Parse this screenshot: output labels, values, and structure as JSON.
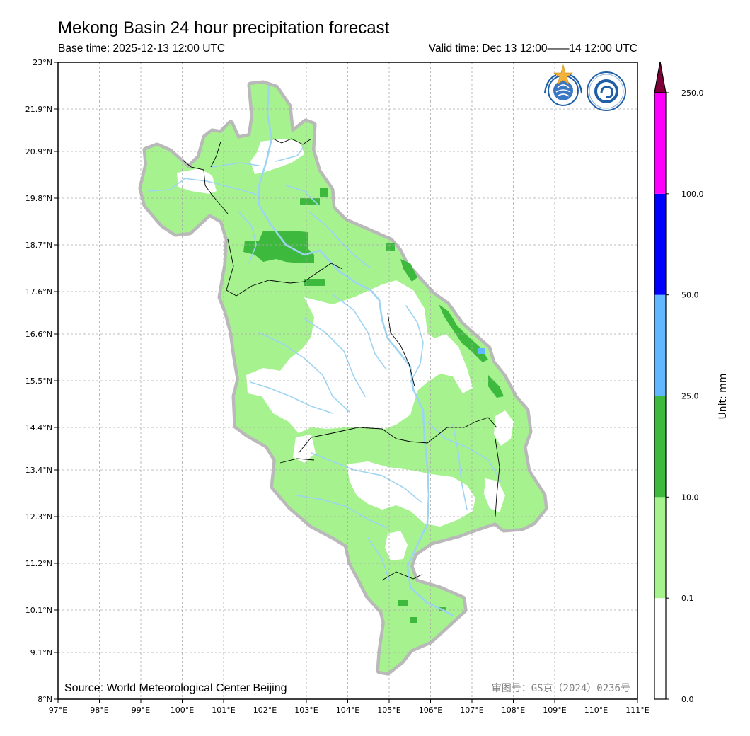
{
  "header": {
    "title": "Mekong Basin 24 hour precipitation forecast",
    "base_time": "Base time: 2025-12-13 12:00 UTC",
    "valid_time": "Valid time: Dec 13 12:00——14 12:00 UTC"
  },
  "axes": {
    "lon_labels": [
      "97°E",
      "98°E",
      "99°E",
      "100°E",
      "101°E",
      "102°E",
      "103°E",
      "104°E",
      "105°E",
      "106°E",
      "107°E",
      "108°E",
      "109°E",
      "110°E",
      "111°E"
    ],
    "lat_labels": [
      "23°N",
      "21.9°N",
      "20.9°N",
      "19.8°N",
      "18.7°N",
      "17.6°N",
      "16.6°N",
      "15.5°N",
      "14.4°N",
      "13.4°N",
      "12.3°N",
      "11.2°N",
      "10.1°N",
      "9.1°N",
      "8°N"
    ],
    "lon_range": [
      97,
      111
    ],
    "lat_range": [
      8,
      23
    ],
    "grid": true
  },
  "map": {
    "source_label": "Source: World Meteorological Center Beijing",
    "approval_number": "审图号：GS京（2024）0236号",
    "logos": [
      "wmo-logo",
      "cma-logo"
    ]
  },
  "colorbar": {
    "unit_label": "Unit: mm",
    "levels": [
      "0.0",
      "0.1",
      "10.0",
      "25.0",
      "50.0",
      "100.0",
      "250.0"
    ],
    "colors": [
      "#ffffff",
      "#a6f28f",
      "#3dba3d",
      "#61b8ff",
      "#0000ff",
      "#ff00ff",
      "#7f0038"
    ]
  }
}
